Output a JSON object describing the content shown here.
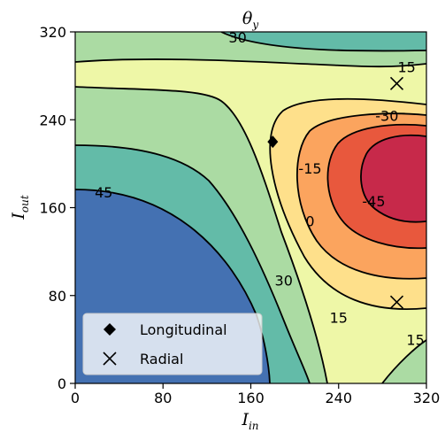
{
  "chart_data": {
    "type": "contour",
    "title": "θ",
    "title_subscript": "y",
    "xlabel": "I",
    "xlabel_subscript": "in",
    "ylabel": "I",
    "ylabel_subscript": "out",
    "xlim": [
      0,
      320
    ],
    "ylim": [
      0,
      320
    ],
    "xticks": [
      "0",
      "80",
      "160",
      "240",
      "320"
    ],
    "yticks": [
      "0",
      "80",
      "160",
      "240",
      "320"
    ],
    "contour_levels": [
      -45,
      -30,
      -15,
      0,
      15,
      30,
      45
    ],
    "contour_labels": [
      {
        "text": "30",
        "x": 148,
        "y": 315
      },
      {
        "text": "15",
        "x": 302,
        "y": 288
      },
      {
        "text": "-30",
        "x": 284,
        "y": 244
      },
      {
        "text": "-15",
        "x": 214,
        "y": 196
      },
      {
        "text": "-45",
        "x": 272,
        "y": 166
      },
      {
        "text": "0",
        "x": 214,
        "y": 148
      },
      {
        "text": "45",
        "x": 26,
        "y": 174
      },
      {
        "text": "30",
        "x": 190,
        "y": 94
      },
      {
        "text": "15",
        "x": 240,
        "y": 60
      },
      {
        "text": "15",
        "x": 310,
        "y": 40
      }
    ],
    "markers": [
      {
        "series": "Longitudinal",
        "symbol": "diamond",
        "x": 180,
        "y": 220
      },
      {
        "series": "Radial",
        "symbol": "x",
        "x": 293,
        "y": 273
      },
      {
        "series": "Radial",
        "symbol": "x",
        "x": 293,
        "y": 74
      }
    ],
    "legend": {
      "placement": "lower-left",
      "entries": [
        {
          "label": "Longitudinal",
          "symbol": "diamond"
        },
        {
          "label": "Radial",
          "symbol": "x"
        }
      ]
    },
    "colormap": {
      "-45": "#c7294a",
      "-30": "#e8583d",
      "-15": "#fba45e",
      "0": "#fee08b",
      "15": "#eef7a7",
      "30": "#abdba3",
      "45": "#63bba8",
      "60": "#4471b2"
    },
    "grid": false
  }
}
